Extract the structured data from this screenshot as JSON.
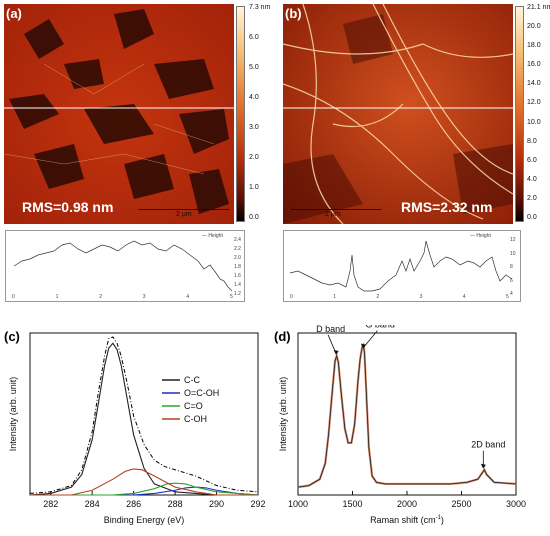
{
  "panels": {
    "a": {
      "label": "(a)",
      "rms": "RMS=0.98 nm",
      "scale_bar": "2 μm",
      "colorbar_ticks": [
        "7.3 nm",
        "6.0",
        "5.0",
        "4.0",
        "3.0",
        "2.0",
        "1.0",
        "0.0"
      ],
      "profile_legend": "Height",
      "profile_y_ticks": [
        "2.4",
        "2.2",
        "2.0",
        "1.8",
        "1.6",
        "1.4",
        "1.2"
      ],
      "profile_x_ticks": [
        "0",
        "1",
        "2",
        "3",
        "4",
        "5"
      ]
    },
    "b": {
      "label": "(b)",
      "rms": "RMS=2.32 nm",
      "scale_bar": "2 μm",
      "colorbar_ticks": [
        "21.1 nm",
        "20.0",
        "18.0",
        "16.0",
        "14.0",
        "12.0",
        "10.0",
        "8.0",
        "6.0",
        "4.0",
        "2.0",
        "0.0"
      ],
      "profile_legend": "Height",
      "profile_y_ticks": [
        "12",
        "10",
        "8",
        "6",
        "4"
      ],
      "profile_x_ticks": [
        "0",
        "1",
        "2",
        "3",
        "4",
        "5"
      ]
    }
  },
  "chart_data": [
    {
      "type": "line",
      "panel_label": "(c)",
      "xlabel": "Binding Energy (eV)",
      "ylabel": "Intensity (arb. unit)",
      "xlim": [
        281,
        292
      ],
      "x_ticks": [
        "282",
        "284",
        "286",
        "288",
        "290",
        "292"
      ],
      "legend_placement": "top-right",
      "colors": {
        "C-C": "#222222",
        "O=C-OH": "#1f2fbf",
        "C=O": "#2aa52a",
        "C-OH": "#b5401f",
        "envelope": "#000000"
      },
      "series": [
        {
          "name": "C-C",
          "x": [
            281,
            282,
            283,
            283.5,
            284,
            284.3,
            284.6,
            284.8,
            285,
            285.2,
            285.4,
            285.7,
            286,
            286.5,
            287,
            288,
            289,
            290,
            292
          ],
          "y": [
            0.0,
            0.01,
            0.05,
            0.13,
            0.35,
            0.58,
            0.82,
            0.93,
            0.96,
            0.92,
            0.82,
            0.6,
            0.38,
            0.17,
            0.07,
            0.02,
            0.01,
            0.0,
            0.0
          ]
        },
        {
          "name": "O=C-OH",
          "x": [
            281,
            286,
            287,
            288,
            288.5,
            289,
            289.5,
            290,
            291,
            292
          ],
          "y": [
            0.0,
            0.0,
            0.01,
            0.03,
            0.045,
            0.05,
            0.045,
            0.03,
            0.01,
            0.0
          ]
        },
        {
          "name": "C=O",
          "x": [
            281,
            285,
            286,
            287,
            287.6,
            288,
            288.5,
            289,
            290,
            292
          ],
          "y": [
            0.0,
            0.0,
            0.01,
            0.04,
            0.07,
            0.075,
            0.07,
            0.05,
            0.02,
            0.0
          ]
        },
        {
          "name": "C-OH",
          "x": [
            281,
            283,
            284,
            285,
            285.6,
            286,
            286.4,
            287,
            288,
            289,
            290,
            292
          ],
          "y": [
            0.0,
            0.0,
            0.03,
            0.1,
            0.15,
            0.165,
            0.16,
            0.12,
            0.05,
            0.02,
            0.0,
            0.0
          ]
        }
      ],
      "envelope": {
        "x": [
          281,
          282,
          283,
          283.5,
          284,
          284.3,
          284.6,
          284.8,
          285,
          285.2,
          285.4,
          285.7,
          286,
          286.5,
          287,
          287.5,
          288,
          288.5,
          289,
          289.5,
          290,
          291,
          292
        ],
        "y": [
          0.01,
          0.02,
          0.06,
          0.16,
          0.4,
          0.65,
          0.88,
          0.99,
          1.0,
          0.96,
          0.88,
          0.7,
          0.5,
          0.32,
          0.22,
          0.18,
          0.16,
          0.14,
          0.12,
          0.09,
          0.06,
          0.03,
          0.02
        ]
      }
    },
    {
      "type": "line",
      "panel_label": "(d)",
      "xlabel": "Raman shift (cm",
      "xlabel_sup": "-1",
      "xlabel_end": ")",
      "ylabel": "Intensity (arb. unit)",
      "xlim": [
        1000,
        3000
      ],
      "x_ticks": [
        "1000",
        "1500",
        "2000",
        "2500",
        "3000"
      ],
      "colors": {
        "data": "#2b2b2b",
        "fit": "#d98a6a"
      },
      "annotations": [
        {
          "text": "D band",
          "x": 1350,
          "y": 0.88
        },
        {
          "text": "G band",
          "x": 1600,
          "y": 0.92
        },
        {
          "text": "2D band",
          "x": 2700,
          "y": 0.16
        }
      ],
      "series": [
        {
          "name": "",
          "x": [
            1000,
            1100,
            1200,
            1250,
            1280,
            1310,
            1340,
            1355,
            1370,
            1400,
            1430,
            1460,
            1490,
            1520,
            1550,
            1570,
            1590,
            1600,
            1610,
            1630,
            1650,
            1680,
            1720,
            1800,
            2000,
            2200,
            2400,
            2550,
            2650,
            2690,
            2710,
            2730,
            2800,
            3000
          ],
          "y": [
            0.05,
            0.06,
            0.1,
            0.2,
            0.38,
            0.62,
            0.85,
            0.88,
            0.84,
            0.62,
            0.42,
            0.33,
            0.33,
            0.45,
            0.72,
            0.86,
            0.94,
            0.95,
            0.9,
            0.6,
            0.3,
            0.12,
            0.08,
            0.07,
            0.07,
            0.07,
            0.07,
            0.08,
            0.1,
            0.14,
            0.16,
            0.13,
            0.08,
            0.07
          ]
        }
      ]
    }
  ]
}
